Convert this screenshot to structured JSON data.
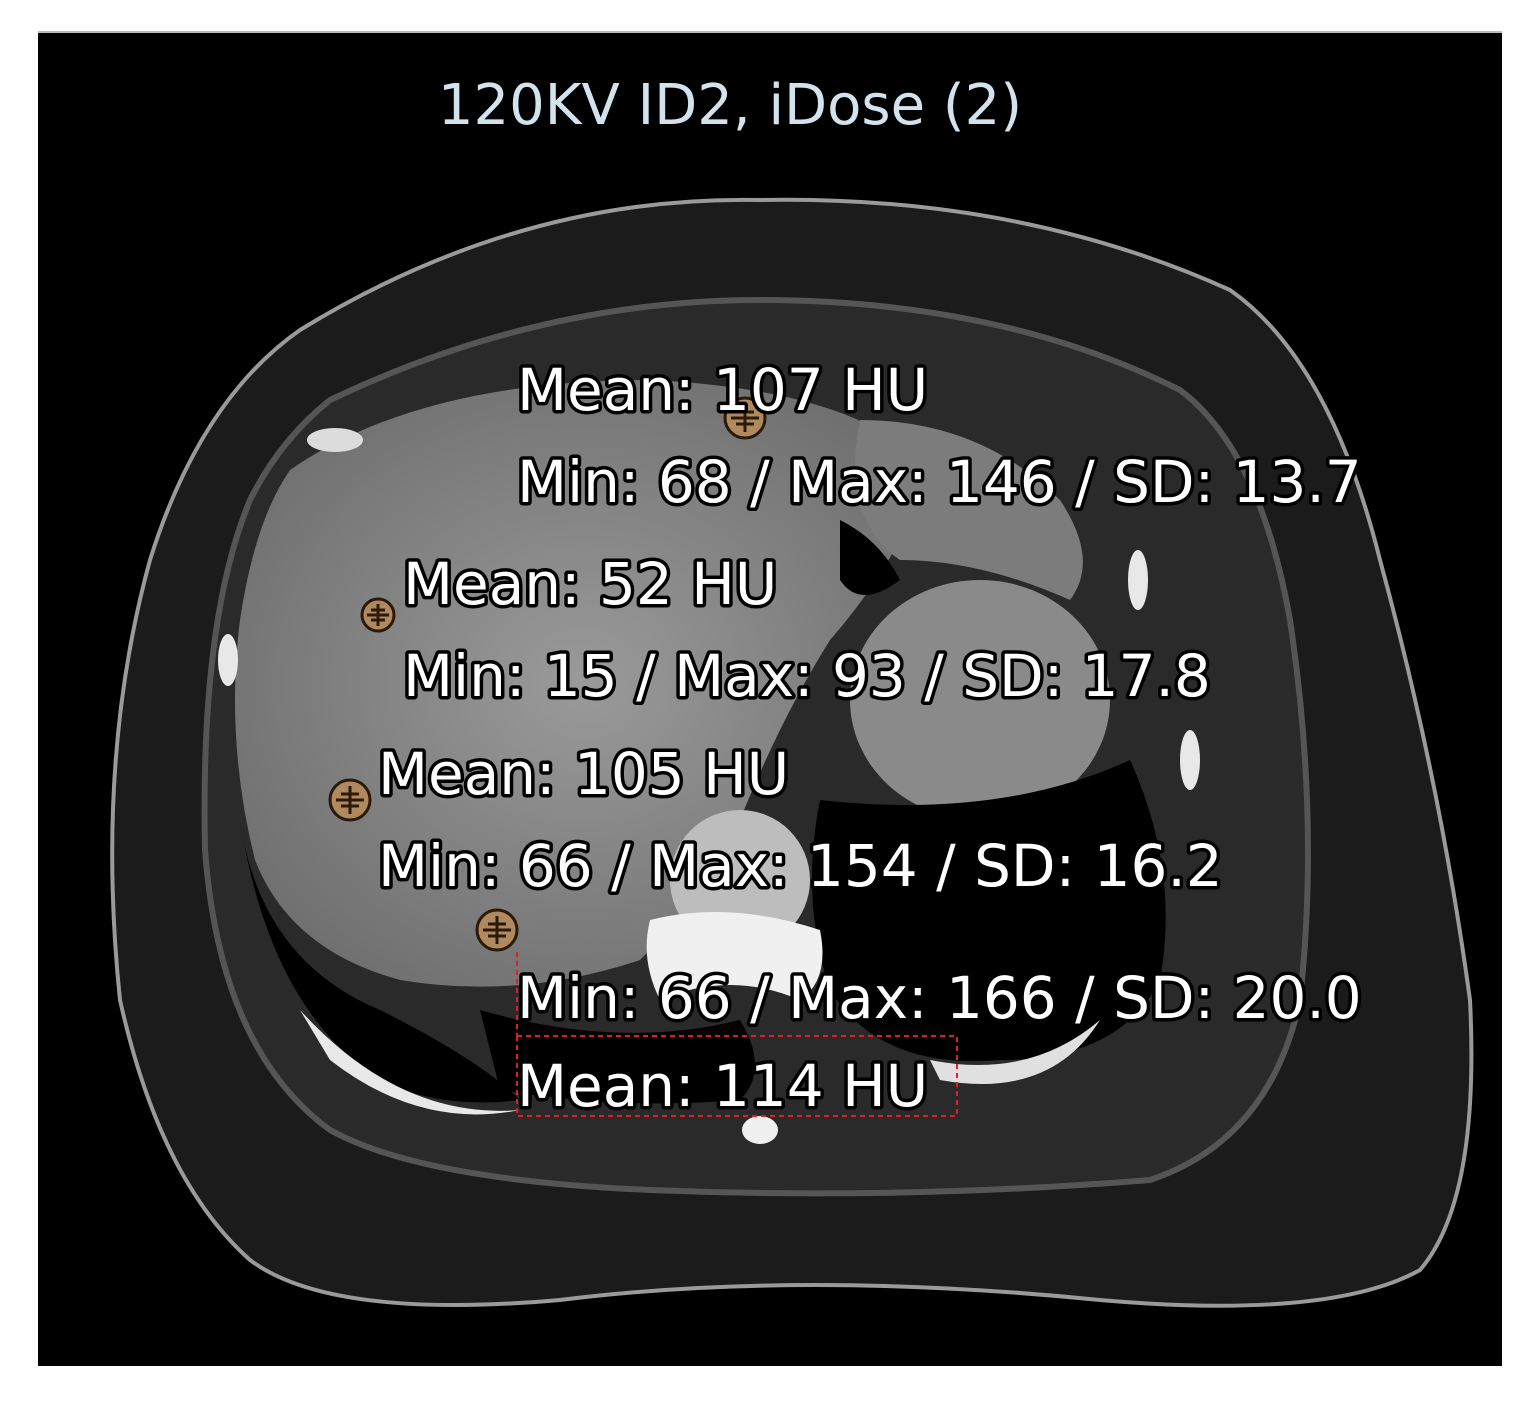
{
  "header": {
    "title": "120KV ID2, iDose (2)"
  },
  "rois": [
    {
      "mean": "Mean: 107 HU",
      "stats": "Min: 68 / Max: 146 / SD: 13.7"
    },
    {
      "mean": "Mean: 52 HU",
      "stats": "Min: 15 / Max: 93 / SD: 17.8"
    },
    {
      "mean": "Mean: 105 HU",
      "stats": "Min: 66 / Max: 154 / SD: 16.2"
    },
    {
      "mean": "Mean: 114 HU",
      "stats": "Min: 66 / Max: 166 / SD: 20.0"
    }
  ]
}
